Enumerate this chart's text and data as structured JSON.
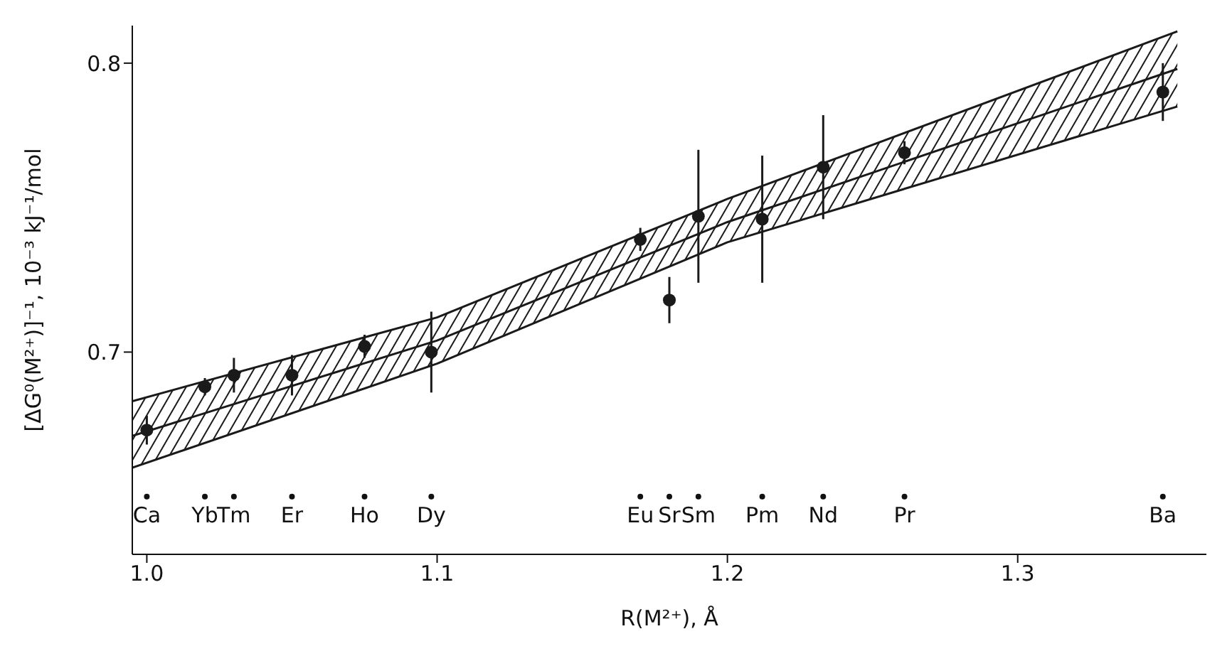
{
  "chart_data": {
    "type": "scatter",
    "xlabel": "R(M²⁺), Å",
    "ylabel": "[ΔG⁰(M²⁺)]⁻¹, 10⁻³ kJ⁻¹/mol",
    "xlim": [
      0.995,
      1.365
    ],
    "ylim": [
      0.63,
      0.813
    ],
    "xticks": [
      {
        "value": 1.0,
        "label": "1.0"
      },
      1.1,
      1.2,
      1.3
    ],
    "yticks": [
      0.7,
      0.8
    ],
    "grid": false,
    "series": [
      {
        "color": "#1a1a1a",
        "marker": "circle",
        "x": [
          1.0,
          1.02,
          1.03,
          1.05,
          1.075,
          1.098,
          1.17,
          1.18,
          1.19,
          1.212,
          1.233,
          1.261,
          1.35
        ],
        "values": [
          0.673,
          0.688,
          0.692,
          0.692,
          0.702,
          0.7,
          0.739,
          0.718,
          0.747,
          0.746,
          0.764,
          0.769,
          0.79
        ],
        "errors": [
          0.005,
          0.003,
          0.006,
          0.007,
          0.004,
          0.014,
          0.004,
          0.008,
          0.023,
          0.022,
          0.018,
          0.004,
          0.01
        ]
      },
      {
        "type": "line",
        "color": "#1a1a1a",
        "x": [
          0.995,
          1.1,
          1.2,
          1.355
        ],
        "values": [
          0.671,
          0.704,
          0.745,
          0.798
        ],
        "lower": [
          0.66,
          0.696,
          0.738,
          0.785
        ],
        "upper": [
          0.683,
          0.712,
          0.753,
          0.811
        ]
      },
      {
        "type": "line",
        "color": "#1a1a1a",
        "x": [
          0.995,
          1.1,
          1.2,
          1.355
        ],
        "values": [
          0.66,
          0.696,
          0.738,
          0.785
        ]
      },
      {
        "type": "line",
        "color": "#1a1a1a",
        "x": [
          0.995,
          1.1,
          1.2,
          1.355
        ],
        "values": [
          0.683,
          0.712,
          0.753,
          0.811
        ]
      }
    ],
    "annotations": [
      {
        "text": "Ca",
        "x": 1.0,
        "y": 0.65
      },
      {
        "text": "Yb",
        "x": 1.02,
        "y": 0.65
      },
      {
        "text": "Tm",
        "x": 1.03,
        "y": 0.65
      },
      {
        "text": "Er",
        "x": 1.05,
        "y": 0.65
      },
      {
        "text": "Ho",
        "x": 1.075,
        "y": 0.65
      },
      {
        "text": "Dy",
        "x": 1.098,
        "y": 0.65
      },
      {
        "text": "Eu",
        "x": 1.17,
        "y": 0.65
      },
      {
        "text": "Sr",
        "x": 1.18,
        "y": 0.65
      },
      {
        "text": "Sm",
        "x": 1.19,
        "y": 0.65
      },
      {
        "text": "Pm",
        "x": 1.212,
        "y": 0.65
      },
      {
        "text": "Nd",
        "x": 1.233,
        "y": 0.65
      },
      {
        "text": "Pr",
        "x": 1.261,
        "y": 0.65
      },
      {
        "text": "Ba",
        "x": 1.35,
        "y": 0.65
      }
    ]
  }
}
